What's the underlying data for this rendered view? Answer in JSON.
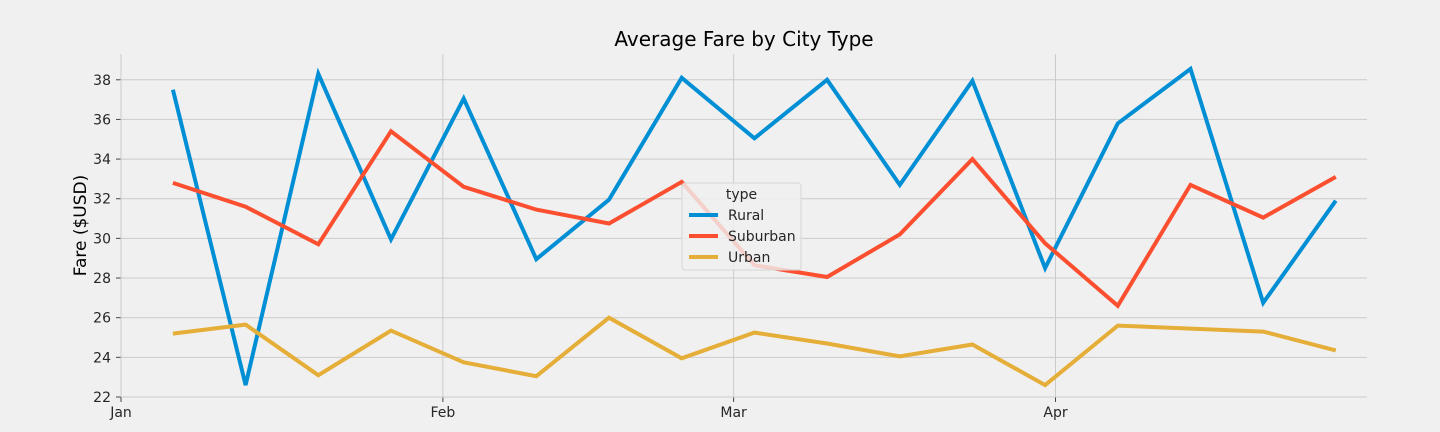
{
  "chart_data": {
    "type": "line",
    "title": "Average Fare by City Type",
    "xlabel": "",
    "ylabel": "Fare ($USD)",
    "x": [
      "2019-01-06",
      "2019-01-13",
      "2019-01-20",
      "2019-01-27",
      "2019-02-03",
      "2019-02-10",
      "2019-02-17",
      "2019-02-24",
      "2019-03-03",
      "2019-03-10",
      "2019-03-17",
      "2019-03-24",
      "2019-03-31",
      "2019-04-07",
      "2019-04-14",
      "2019-04-21",
      "2019-04-28"
    ],
    "xlim": [
      "2019-01-01",
      "2019-05-01"
    ],
    "x_ticks": [
      {
        "date": "2019-01-01",
        "label": "Jan"
      },
      {
        "date": "2019-02-01",
        "label": "Feb"
      },
      {
        "date": "2019-03-01",
        "label": "Mar"
      },
      {
        "date": "2019-04-01",
        "label": "Apr"
      }
    ],
    "ylim": [
      22,
      39.3
    ],
    "y_ticks": [
      22,
      24,
      26,
      28,
      30,
      32,
      34,
      36,
      38
    ],
    "grid": true,
    "legend": {
      "title": "type",
      "position": "center"
    },
    "series": [
      {
        "name": "Rural",
        "color": "#008fd5",
        "values": [
          37.5,
          22.6,
          38.3,
          29.95,
          37.05,
          28.95,
          31.95,
          38.1,
          35.05,
          38.0,
          32.7,
          37.95,
          28.5,
          35.8,
          38.55,
          26.75,
          31.9
        ]
      },
      {
        "name": "Suburban",
        "color": "#fc4f30",
        "values": [
          32.8,
          31.6,
          29.7,
          35.4,
          32.6,
          31.45,
          30.75,
          32.85,
          28.65,
          28.05,
          30.2,
          34.0,
          29.75,
          26.6,
          32.7,
          31.05,
          33.1
        ]
      },
      {
        "name": "Urban",
        "color": "#e5ae38",
        "values": [
          25.2,
          25.65,
          23.1,
          25.35,
          23.75,
          23.05,
          26.0,
          23.95,
          25.25,
          24.7,
          24.05,
          24.65,
          22.6,
          25.6,
          25.45,
          25.3,
          24.35
        ]
      }
    ]
  }
}
